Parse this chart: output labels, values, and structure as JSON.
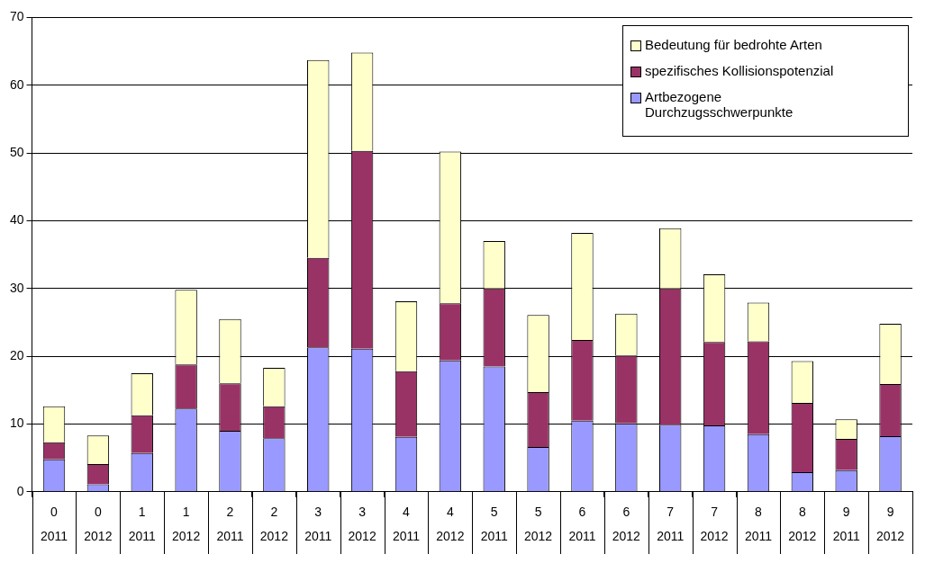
{
  "chart_data": {
    "type": "bar",
    "stacked": true,
    "grid": "y",
    "legend": "top right",
    "categories": [
      "0\n2011",
      "0\n2012",
      "1\n2011",
      "1\n2012",
      "2\n2011",
      "2\n2012",
      "3\n2011",
      "3\n2012",
      "4\n2011",
      "4\n2012",
      "5\n2011",
      "5\n2012",
      "6\n2011",
      "6\n2012",
      "7\n2011",
      "7\n2012",
      "8\n2011",
      "8\n2012",
      "9\n2011",
      "9\n2012"
    ],
    "ylim": [
      0,
      70
    ],
    "yticks": [
      0,
      10,
      20,
      30,
      40,
      50,
      60,
      70
    ],
    "series": [
      {
        "name": "Artbezogene Durchzugsschwerpunkte",
        "color": "#9999ff",
        "values": [
          4.8,
          1.1,
          5.7,
          12.3,
          9.0,
          7.9,
          21.3,
          21.1,
          8.1,
          19.4,
          18.5,
          6.6,
          10.5,
          10.1,
          9.9,
          9.8,
          8.5,
          2.9,
          3.2,
          8.2
        ]
      },
      {
        "name": "spezifisches Kollisionspotenzial",
        "color": "#993366",
        "values": [
          2.5,
          3.0,
          5.6,
          6.5,
          7.0,
          4.7,
          13.2,
          29.2,
          9.7,
          8.4,
          11.5,
          8.1,
          11.9,
          10.0,
          20.1,
          12.3,
          13.7,
          10.2,
          4.6,
          7.7
        ]
      },
      {
        "name": "Bedeutung für bedrohte Arten",
        "color": "#ffffcc",
        "values": [
          5.3,
          4.2,
          6.2,
          11.0,
          9.5,
          5.7,
          29.2,
          14.5,
          10.3,
          22.4,
          7.0,
          11.4,
          15.8,
          6.2,
          8.9,
          10.0,
          5.7,
          6.2,
          2.9,
          8.9
        ]
      }
    ]
  }
}
